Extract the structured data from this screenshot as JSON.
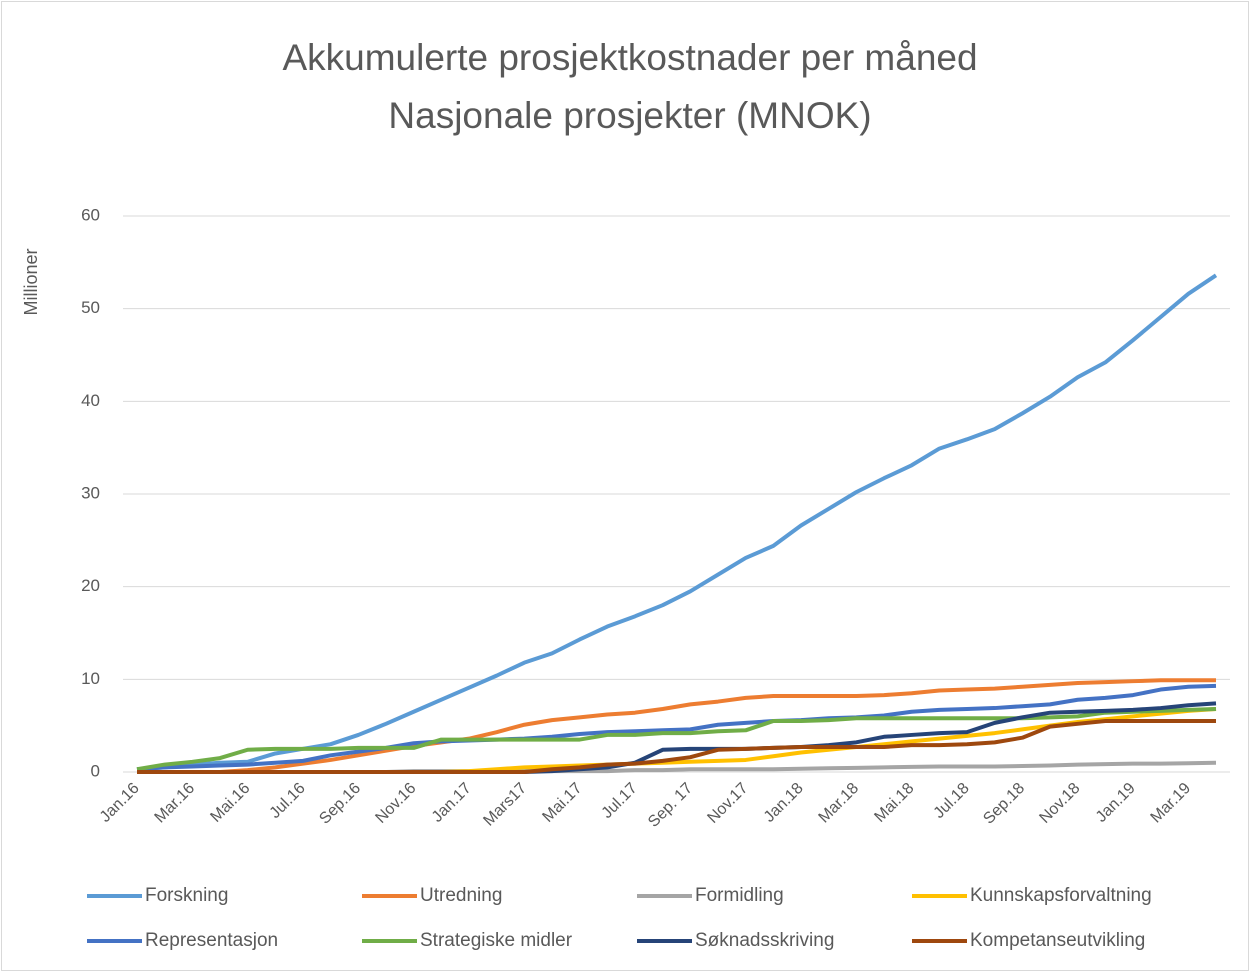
{
  "chart_data": {
    "type": "line",
    "title": "Akkumulerte prosjektkostnader per måned",
    "subtitle": "Nasjonale prosjekter (MNOK)",
    "y_label": "Millioner",
    "categories": [
      "Jan.16",
      null,
      "Mar.16",
      null,
      "Mai.16",
      null,
      "Jul.16",
      null,
      "Sep.16",
      null,
      "Nov.16",
      null,
      "Jan.17",
      null,
      "Mars17",
      null,
      "Mai.17",
      null,
      "Jul.17",
      null,
      "Sep. 17",
      null,
      "Nov.17",
      null,
      "Jan.18",
      null,
      "Mar.18",
      null,
      "Mai.18",
      null,
      "Jul.18",
      null,
      "Sep.18",
      null,
      "Nov.18",
      null,
      "Jan.19",
      null,
      "Mar.19",
      null
    ],
    "ylim": [
      0,
      60
    ],
    "yticks": [
      0,
      10,
      20,
      30,
      40,
      50,
      60
    ],
    "grid": true,
    "legend": "bottom",
    "series": [
      {
        "name": "Forskning",
        "color": "#5b9bd5",
        "values": [
          0.3,
          0.5,
          0.8,
          1.0,
          1.1,
          2.0,
          2.5,
          3.0,
          4.0,
          5.2,
          6.5,
          7.8,
          9.1,
          10.4,
          11.8,
          12.8,
          14.3,
          15.7,
          16.8,
          18.0,
          19.5,
          21.3,
          23.1,
          24.4,
          26.6,
          28.4,
          30.2,
          31.7,
          33.1,
          34.9,
          35.9,
          37.0,
          38.7,
          40.5,
          42.6,
          44.2,
          46.6,
          49.1,
          51.6,
          53.6
        ]
      },
      {
        "name": "Utredning",
        "color": "#ed7d31",
        "values": [
          0,
          0,
          0,
          0,
          0.2,
          0.5,
          0.9,
          1.3,
          1.8,
          2.3,
          2.8,
          3.2,
          3.6,
          4.3,
          5.1,
          5.6,
          5.9,
          6.2,
          6.4,
          6.8,
          7.3,
          7.6,
          8.0,
          8.2,
          8.2,
          8.2,
          8.2,
          8.3,
          8.5,
          8.8,
          8.9,
          9.0,
          9.2,
          9.4,
          9.6,
          9.7,
          9.8,
          9.9,
          9.9,
          9.9
        ]
      },
      {
        "name": "Formidling",
        "color": "#a5a5a5",
        "values": [
          0,
          0,
          0,
          0,
          0,
          0,
          0,
          0,
          0,
          0,
          0.1,
          0.1,
          0.1,
          0.1,
          0.1,
          0.1,
          0.1,
          0.1,
          0.2,
          0.2,
          0.3,
          0.3,
          0.3,
          0.3,
          0.35,
          0.4,
          0.45,
          0.5,
          0.55,
          0.6,
          0.6,
          0.6,
          0.65,
          0.7,
          0.8,
          0.85,
          0.9,
          0.9,
          0.95,
          1.0
        ]
      },
      {
        "name": "Kunnskapsforvaltning",
        "color": "#ffc000",
        "values": [
          0,
          0,
          0,
          0,
          0,
          0,
          0,
          0,
          0,
          0,
          0,
          0,
          0.1,
          0.3,
          0.5,
          0.6,
          0.7,
          0.8,
          0.9,
          1.0,
          1.1,
          1.2,
          1.3,
          1.7,
          2.1,
          2.4,
          2.7,
          3.0,
          3.3,
          3.6,
          3.9,
          4.2,
          4.6,
          5.0,
          5.4,
          5.7,
          6.0,
          6.3,
          6.6,
          6.8
        ]
      },
      {
        "name": "Representasjon",
        "color": "#4472c4",
        "values": [
          0.3,
          0.5,
          0.6,
          0.7,
          0.8,
          1.0,
          1.2,
          1.8,
          2.2,
          2.6,
          3.1,
          3.3,
          3.4,
          3.5,
          3.6,
          3.8,
          4.1,
          4.3,
          4.4,
          4.5,
          4.6,
          5.1,
          5.3,
          5.5,
          5.6,
          5.8,
          5.9,
          6.1,
          6.5,
          6.7,
          6.8,
          6.9,
          7.1,
          7.3,
          7.8,
          8.0,
          8.3,
          8.9,
          9.2,
          9.3
        ]
      },
      {
        "name": "Strategiske midler",
        "color": "#70ad47",
        "values": [
          0.3,
          0.8,
          1.1,
          1.5,
          2.4,
          2.5,
          2.5,
          2.5,
          2.6,
          2.6,
          2.6,
          3.5,
          3.5,
          3.5,
          3.5,
          3.5,
          3.5,
          4.0,
          4.0,
          4.2,
          4.2,
          4.4,
          4.5,
          5.5,
          5.5,
          5.6,
          5.8,
          5.8,
          5.8,
          5.8,
          5.8,
          5.8,
          5.8,
          5.9,
          6.0,
          6.4,
          6.5,
          6.6,
          6.7,
          6.8
        ]
      },
      {
        "name": "Søknadsskriving",
        "color": "#264478",
        "values": [
          0,
          0,
          0,
          0,
          0,
          0,
          0,
          0,
          0,
          0,
          0,
          0,
          0,
          0,
          0,
          0.1,
          0.3,
          0.5,
          1.0,
          2.4,
          2.5,
          2.5,
          2.5,
          2.6,
          2.7,
          2.9,
          3.2,
          3.8,
          4.0,
          4.2,
          4.3,
          5.3,
          5.9,
          6.4,
          6.5,
          6.6,
          6.7,
          6.9,
          7.2,
          7.4
        ]
      },
      {
        "name": "Kompetanseutvikling",
        "color": "#9e480e",
        "values": [
          0,
          0,
          0,
          0,
          0,
          0,
          0,
          0,
          0,
          0,
          0,
          0,
          0,
          0,
          0,
          0.3,
          0.5,
          0.8,
          0.9,
          1.2,
          1.6,
          2.4,
          2.5,
          2.6,
          2.7,
          2.7,
          2.7,
          2.7,
          2.9,
          2.9,
          3.0,
          3.2,
          3.7,
          4.9,
          5.2,
          5.5,
          5.5,
          5.5,
          5.5,
          5.5
        ]
      }
    ]
  }
}
